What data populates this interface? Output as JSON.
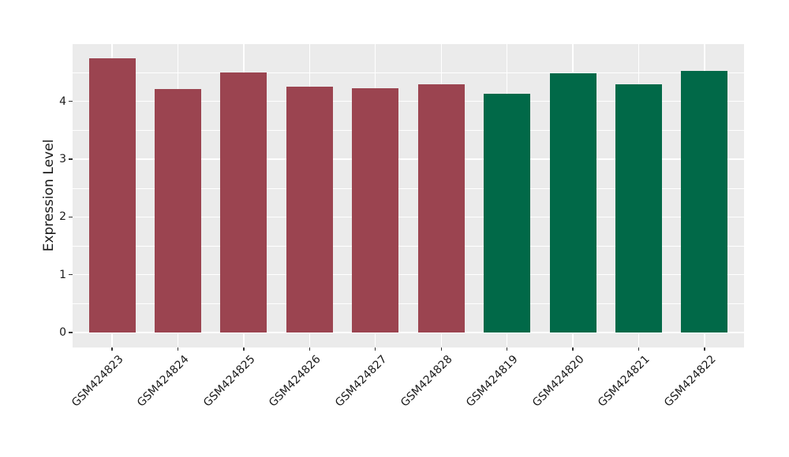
{
  "figure": {
    "background_color": "#ffffff",
    "panel_background_color": "#ebebeb",
    "grid_color": "#ffffff",
    "tick_color": "#333333",
    "text_color": "#1a1a1a"
  },
  "chart_data": {
    "type": "bar",
    "title": "",
    "xlabel": "",
    "ylabel": "Expression Level",
    "categories": [
      "GSM424823",
      "GSM424824",
      "GSM424825",
      "GSM424826",
      "GSM424827",
      "GSM424828",
      "GSM424819",
      "GSM424820",
      "GSM424821",
      "GSM424822"
    ],
    "values": [
      4.75,
      4.21,
      4.5,
      4.25,
      4.22,
      4.29,
      4.13,
      4.49,
      4.29,
      4.53
    ],
    "bar_colors": [
      "#9b4450",
      "#9b4450",
      "#9b4450",
      "#9b4450",
      "#9b4450",
      "#9b4450",
      "#016948",
      "#016948",
      "#016948",
      "#016948"
    ],
    "color_groups": [
      {
        "color": "#9b4450",
        "categories": [
          "GSM424823",
          "GSM424824",
          "GSM424825",
          "GSM424826",
          "GSM424827",
          "GSM424828"
        ]
      },
      {
        "color": "#016948",
        "categories": [
          "GSM424819",
          "GSM424820",
          "GSM424821",
          "GSM424822"
        ]
      }
    ],
    "yticks": [
      0,
      1,
      2,
      3,
      4
    ],
    "yticks_minor": [
      0.5,
      1.5,
      2.5,
      3.5,
      4.5
    ],
    "ylim": [
      -0.26,
      4.99
    ],
    "grid": "major+minor",
    "legend": "none"
  }
}
